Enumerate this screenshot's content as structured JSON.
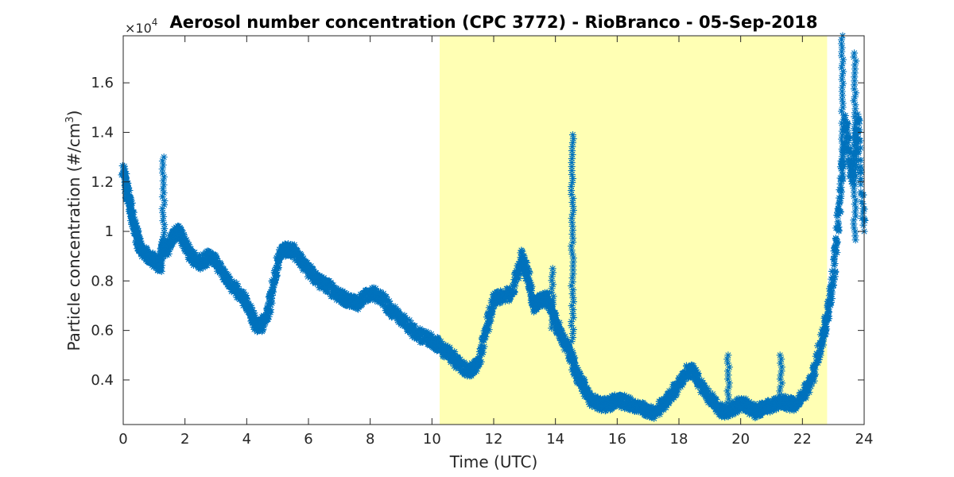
{
  "chart_data": {
    "type": "scatter",
    "title": "Aerosol number concentration (CPC 3772) - RioBranco - 05-Sep-2018",
    "xlabel": "Time (UTC)",
    "ylabel_main": "Particle concentration (#/cm",
    "ylabel_sup": "3",
    "ylabel_close": ")",
    "y_exponent_base": "×10",
    "y_exponent_power": "4",
    "xlim": [
      0,
      24
    ],
    "ylim": [
      0.22,
      1.79
    ],
    "x_ticks": [
      0,
      2,
      4,
      6,
      8,
      10,
      12,
      14,
      16,
      18,
      20,
      22,
      24
    ],
    "y_ticks": [
      0.4,
      0.6,
      0.8,
      1,
      1.2,
      1.4,
      1.6
    ],
    "y_tick_labels": [
      "0.4",
      "0.6",
      "0.8",
      "1",
      "1.2",
      "1.4",
      "1.6"
    ],
    "x_tick_labels": [
      "0",
      "2",
      "4",
      "6",
      "8",
      "10",
      "12",
      "14",
      "16",
      "18",
      "20",
      "22",
      "24"
    ],
    "shaded_region": {
      "x_start": 10.25,
      "x_end": 22.8,
      "color": "#ffffb4"
    },
    "marker": "asterisk",
    "series": [
      {
        "color": "#0072bd",
        "x": [
          0.0,
          0.1,
          0.2,
          0.3,
          0.4,
          0.5,
          0.6,
          0.8,
          1.0,
          1.2,
          1.3,
          1.4,
          1.6,
          1.8,
          2.0,
          2.2,
          2.5,
          2.8,
          3.0,
          3.3,
          3.6,
          3.9,
          4.1,
          4.3,
          4.5,
          4.7,
          4.9,
          5.1,
          5.3,
          5.5,
          5.8,
          6.0,
          6.3,
          6.6,
          7.0,
          7.3,
          7.6,
          8.0,
          8.3,
          8.6,
          9.0,
          9.3,
          9.6,
          10.0,
          10.3,
          10.6,
          10.9,
          11.2,
          11.5,
          11.8,
          12.0,
          12.3,
          12.6,
          12.9,
          13.1,
          13.3,
          13.5,
          13.7,
          13.9,
          14.1,
          14.3,
          14.5,
          14.7,
          14.9,
          15.1,
          15.4,
          15.7,
          16.0,
          16.3,
          16.6,
          16.9,
          17.2,
          17.5,
          17.8,
          18.1,
          18.4,
          18.7,
          19.0,
          19.3,
          19.6,
          19.9,
          20.2,
          20.5,
          20.8,
          21.1,
          21.4,
          21.7,
          22.0,
          22.3,
          22.6,
          22.8,
          23.0,
          23.2,
          23.4,
          23.6,
          23.8,
          24.0
        ],
        "y": [
          1.25,
          1.18,
          1.12,
          1.05,
          1.0,
          0.95,
          0.92,
          0.9,
          0.88,
          0.86,
          0.95,
          0.92,
          0.98,
          1.0,
          0.95,
          0.9,
          0.87,
          0.9,
          0.88,
          0.82,
          0.77,
          0.73,
          0.68,
          0.62,
          0.62,
          0.68,
          0.8,
          0.92,
          0.93,
          0.92,
          0.88,
          0.84,
          0.8,
          0.78,
          0.74,
          0.72,
          0.71,
          0.75,
          0.74,
          0.69,
          0.65,
          0.61,
          0.58,
          0.56,
          0.53,
          0.5,
          0.46,
          0.44,
          0.46,
          0.62,
          0.73,
          0.74,
          0.75,
          0.9,
          0.82,
          0.7,
          0.72,
          0.73,
          0.68,
          0.6,
          0.55,
          0.5,
          0.42,
          0.38,
          0.33,
          0.3,
          0.3,
          0.32,
          0.31,
          0.29,
          0.28,
          0.27,
          0.3,
          0.35,
          0.4,
          0.45,
          0.38,
          0.33,
          0.28,
          0.27,
          0.3,
          0.3,
          0.27,
          0.29,
          0.3,
          0.31,
          0.3,
          0.33,
          0.4,
          0.55,
          0.65,
          0.82,
          1.1,
          1.45,
          1.2,
          1.45,
          1.0
        ]
      }
    ],
    "spikes": [
      {
        "x": 1.3,
        "y_min": 0.95,
        "y_max": 1.3
      },
      {
        "x": 14.55,
        "y_min": 0.55,
        "y_max": 1.39
      },
      {
        "x": 13.9,
        "y_min": 0.6,
        "y_max": 0.85
      },
      {
        "x": 23.3,
        "y_min": 1.2,
        "y_max": 1.79
      },
      {
        "x": 23.7,
        "y_min": 0.95,
        "y_max": 1.72
      },
      {
        "x": 19.6,
        "y_min": 0.3,
        "y_max": 0.5
      },
      {
        "x": 21.3,
        "y_min": 0.3,
        "y_max": 0.5
      }
    ]
  }
}
